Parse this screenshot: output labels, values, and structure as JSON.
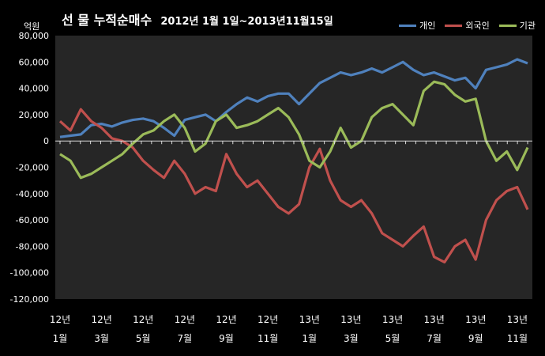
{
  "chart_data": {
    "type": "line",
    "title": "선 물 누적순매수",
    "subtitle": "2012년 1월 1일~2013년11월15일",
    "ylabel": "억원",
    "ylim": [
      -120000,
      80000
    ],
    "yticks": [
      "80,000",
      "60,000",
      "40,000",
      "20,000",
      "0",
      "-20,000",
      "-40,000",
      "-60,000",
      "-80,000",
      "-100,000",
      "-120,000"
    ],
    "ytick_values": [
      80000,
      60000,
      40000,
      20000,
      0,
      -20000,
      -40000,
      -60000,
      -80000,
      -100000,
      -120000
    ],
    "xtick_years": [
      "12년",
      "12년",
      "12년",
      "12년",
      "12년",
      "12년",
      "13년",
      "13년",
      "13년",
      "13년",
      "13년",
      "13년"
    ],
    "xtick_months": [
      "1월",
      "3월",
      "5월",
      "7월",
      "9월",
      "11월",
      "1월",
      "3월",
      "5월",
      "7월",
      "9월",
      "11월"
    ],
    "xtick_positions": [
      0,
      2,
      4,
      6,
      8,
      10,
      12,
      14,
      16,
      18,
      20,
      22
    ],
    "x_max": 22.5,
    "grid": false,
    "legend_position": "top-right",
    "series": [
      {
        "name": "개인",
        "color": "#4f81bd",
        "points": [
          [
            0,
            3000
          ],
          [
            0.5,
            4000
          ],
          [
            1,
            5000
          ],
          [
            1.5,
            12000
          ],
          [
            2,
            13000
          ],
          [
            2.5,
            11000
          ],
          [
            3,
            14000
          ],
          [
            3.5,
            16000
          ],
          [
            4,
            17000
          ],
          [
            4.5,
            15000
          ],
          [
            5,
            10000
          ],
          [
            5.5,
            4000
          ],
          [
            6,
            16000
          ],
          [
            6.5,
            18000
          ],
          [
            7,
            20000
          ],
          [
            7.5,
            15000
          ],
          [
            8,
            22000
          ],
          [
            8.5,
            28000
          ],
          [
            9,
            33000
          ],
          [
            9.5,
            30000
          ],
          [
            10,
            34000
          ],
          [
            10.5,
            36000
          ],
          [
            11,
            36000
          ],
          [
            11.5,
            28000
          ],
          [
            12,
            36000
          ],
          [
            12.5,
            44000
          ],
          [
            13,
            48000
          ],
          [
            13.5,
            52000
          ],
          [
            14,
            50000
          ],
          [
            14.5,
            52000
          ],
          [
            15,
            55000
          ],
          [
            15.5,
            52000
          ],
          [
            16,
            56000
          ],
          [
            16.5,
            60000
          ],
          [
            17,
            54000
          ],
          [
            17.5,
            50000
          ],
          [
            18,
            52000
          ],
          [
            18.5,
            49000
          ],
          [
            19,
            46000
          ],
          [
            19.5,
            48000
          ],
          [
            20,
            40000
          ],
          [
            20.5,
            54000
          ],
          [
            21,
            56000
          ],
          [
            21.5,
            58000
          ],
          [
            22,
            62000
          ],
          [
            22.5,
            59000
          ]
        ]
      },
      {
        "name": "외국인",
        "color": "#c0504d",
        "points": [
          [
            0,
            15000
          ],
          [
            0.5,
            8000
          ],
          [
            1,
            24000
          ],
          [
            1.5,
            15000
          ],
          [
            2,
            10000
          ],
          [
            2.5,
            2000
          ],
          [
            3,
            0
          ],
          [
            3.5,
            -5000
          ],
          [
            4,
            -15000
          ],
          [
            4.5,
            -22000
          ],
          [
            5,
            -28000
          ],
          [
            5.5,
            -15000
          ],
          [
            6,
            -25000
          ],
          [
            6.5,
            -40000
          ],
          [
            7,
            -35000
          ],
          [
            7.5,
            -38000
          ],
          [
            8,
            -10000
          ],
          [
            8.5,
            -25000
          ],
          [
            9,
            -35000
          ],
          [
            9.5,
            -30000
          ],
          [
            10,
            -40000
          ],
          [
            10.5,
            -50000
          ],
          [
            11,
            -55000
          ],
          [
            11.5,
            -48000
          ],
          [
            12,
            -20000
          ],
          [
            12.5,
            -6000
          ],
          [
            13,
            -30000
          ],
          [
            13.5,
            -45000
          ],
          [
            14,
            -50000
          ],
          [
            14.5,
            -45000
          ],
          [
            15,
            -55000
          ],
          [
            15.5,
            -70000
          ],
          [
            16,
            -75000
          ],
          [
            16.5,
            -80000
          ],
          [
            17,
            -72000
          ],
          [
            17.5,
            -65000
          ],
          [
            18,
            -88000
          ],
          [
            18.5,
            -92000
          ],
          [
            19,
            -80000
          ],
          [
            19.5,
            -75000
          ],
          [
            20,
            -90000
          ],
          [
            20.5,
            -60000
          ],
          [
            21,
            -45000
          ],
          [
            21.5,
            -38000
          ],
          [
            22,
            -35000
          ],
          [
            22.5,
            -52000
          ]
        ]
      },
      {
        "name": "기관",
        "color": "#9bbb59",
        "points": [
          [
            0,
            -10000
          ],
          [
            0.5,
            -15000
          ],
          [
            1,
            -28000
          ],
          [
            1.5,
            -25000
          ],
          [
            2,
            -20000
          ],
          [
            2.5,
            -15000
          ],
          [
            3,
            -10000
          ],
          [
            3.5,
            -2000
          ],
          [
            4,
            5000
          ],
          [
            4.5,
            8000
          ],
          [
            5,
            15000
          ],
          [
            5.5,
            20000
          ],
          [
            6,
            10000
          ],
          [
            6.5,
            -8000
          ],
          [
            7,
            -2000
          ],
          [
            7.5,
            15000
          ],
          [
            8,
            20000
          ],
          [
            8.5,
            10000
          ],
          [
            9,
            12000
          ],
          [
            9.5,
            15000
          ],
          [
            10,
            20000
          ],
          [
            10.5,
            25000
          ],
          [
            11,
            18000
          ],
          [
            11.5,
            5000
          ],
          [
            12,
            -15000
          ],
          [
            12.5,
            -20000
          ],
          [
            13,
            -8000
          ],
          [
            13.5,
            10000
          ],
          [
            14,
            -5000
          ],
          [
            14.5,
            0
          ],
          [
            15,
            18000
          ],
          [
            15.5,
            25000
          ],
          [
            16,
            28000
          ],
          [
            16.5,
            20000
          ],
          [
            17,
            12000
          ],
          [
            17.5,
            38000
          ],
          [
            18,
            45000
          ],
          [
            18.5,
            43000
          ],
          [
            19,
            35000
          ],
          [
            19.5,
            30000
          ],
          [
            20,
            32000
          ],
          [
            20.5,
            0
          ],
          [
            21,
            -15000
          ],
          [
            21.5,
            -8000
          ],
          [
            22,
            -22000
          ],
          [
            22.5,
            -5000
          ]
        ]
      }
    ]
  }
}
